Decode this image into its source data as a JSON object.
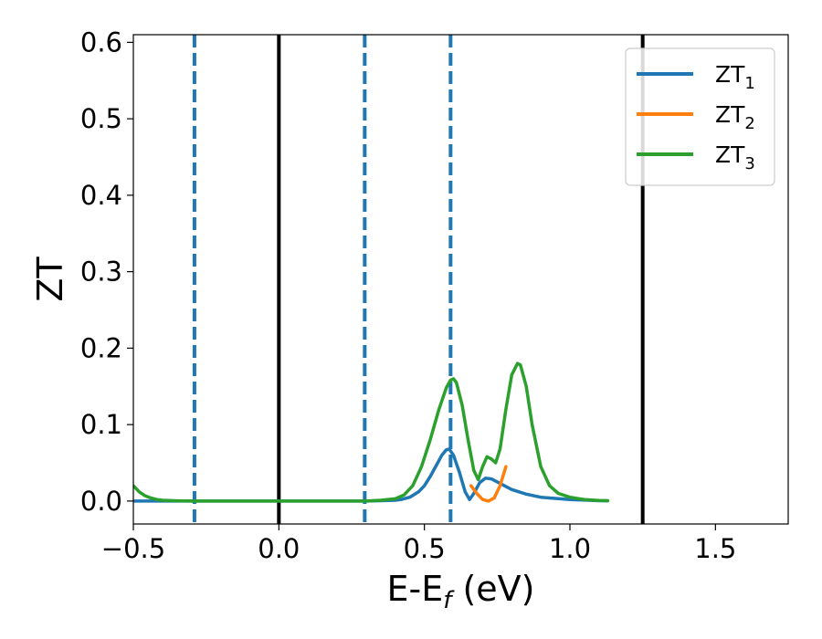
{
  "chart_data": {
    "type": "line",
    "xlabel": "E-E_f (eV)",
    "xlabel_parts": {
      "main": "E-E",
      "sub": "f",
      "tail": " (eV)"
    },
    "ylabel": "ZT",
    "xlim": [
      -0.5,
      1.75
    ],
    "ylim": [
      -0.03,
      0.61
    ],
    "xticks": [
      -0.5,
      0.0,
      0.5,
      1.0,
      1.5
    ],
    "xtick_labels": [
      "−0.5",
      "0.0",
      "0.5",
      "1.0",
      "1.5"
    ],
    "yticks": [
      0.0,
      0.1,
      0.2,
      0.3,
      0.4,
      0.5,
      0.6
    ],
    "ytick_labels": [
      "0.0",
      "0.1",
      "0.2",
      "0.3",
      "0.4",
      "0.5",
      "0.6"
    ],
    "grid": false,
    "legend_position": "top-right",
    "reference_lines": [
      {
        "x": -0.29,
        "style": "dashed",
        "color": "#1f77b4"
      },
      {
        "x": 0.0,
        "style": "solid",
        "color": "#000000"
      },
      {
        "x": 0.295,
        "style": "dashed",
        "color": "#1f77b4"
      },
      {
        "x": 0.59,
        "style": "dashed",
        "color": "#1f77b4"
      },
      {
        "x": 1.25,
        "style": "solid",
        "color": "#000000"
      }
    ],
    "series": [
      {
        "name": "ZT_1",
        "label_main": "ZT",
        "label_sub": "1",
        "color": "#1f77b4",
        "x": [
          -0.5,
          -0.45,
          -0.4,
          -0.3,
          -0.2,
          0.0,
          0.2,
          0.3,
          0.35,
          0.4,
          0.42,
          0.45,
          0.48,
          0.5,
          0.52,
          0.54,
          0.56,
          0.575,
          0.585,
          0.6,
          0.62,
          0.64,
          0.655,
          0.67,
          0.69,
          0.71,
          0.73,
          0.76,
          0.8,
          0.85,
          0.9,
          1.0,
          1.1,
          1.13
        ],
        "y": [
          0.0,
          0.0,
          0.0,
          0.0,
          0.0,
          0.0,
          0.0,
          0.0,
          0.0005,
          0.001,
          0.002,
          0.005,
          0.012,
          0.02,
          0.032,
          0.046,
          0.06,
          0.067,
          0.068,
          0.06,
          0.038,
          0.012,
          0.002,
          0.01,
          0.024,
          0.03,
          0.029,
          0.023,
          0.015,
          0.009,
          0.005,
          0.002,
          0.0005,
          0.0003
        ]
      },
      {
        "name": "ZT_2",
        "label_main": "ZT",
        "label_sub": "2",
        "color": "#ff7f0e",
        "x": [
          0.66,
          0.68,
          0.7,
          0.72,
          0.74,
          0.76,
          0.78
        ],
        "y": [
          0.02,
          0.01,
          0.002,
          0.0,
          0.004,
          0.02,
          0.045
        ]
      },
      {
        "name": "ZT_3",
        "label_main": "ZT",
        "label_sub": "3",
        "color": "#2ca02c",
        "x": [
          -0.5,
          -0.48,
          -0.46,
          -0.44,
          -0.42,
          -0.4,
          -0.35,
          -0.3,
          -0.2,
          0.0,
          0.2,
          0.3,
          0.35,
          0.4,
          0.43,
          0.46,
          0.49,
          0.52,
          0.55,
          0.575,
          0.59,
          0.6,
          0.61,
          0.63,
          0.65,
          0.67,
          0.685,
          0.7,
          0.715,
          0.73,
          0.745,
          0.76,
          0.78,
          0.8,
          0.82,
          0.83,
          0.85,
          0.87,
          0.9,
          0.93,
          0.96,
          1.0,
          1.05,
          1.1,
          1.13
        ],
        "y": [
          0.02,
          0.012,
          0.007,
          0.004,
          0.002,
          0.001,
          0.0003,
          0.0,
          0.0,
          0.0,
          0.0,
          0.0,
          0.001,
          0.003,
          0.008,
          0.02,
          0.045,
          0.08,
          0.12,
          0.148,
          0.158,
          0.16,
          0.155,
          0.125,
          0.08,
          0.04,
          0.028,
          0.045,
          0.058,
          0.055,
          0.05,
          0.068,
          0.12,
          0.165,
          0.18,
          0.178,
          0.15,
          0.1,
          0.045,
          0.02,
          0.01,
          0.005,
          0.002,
          0.0007,
          0.0004
        ]
      }
    ]
  }
}
